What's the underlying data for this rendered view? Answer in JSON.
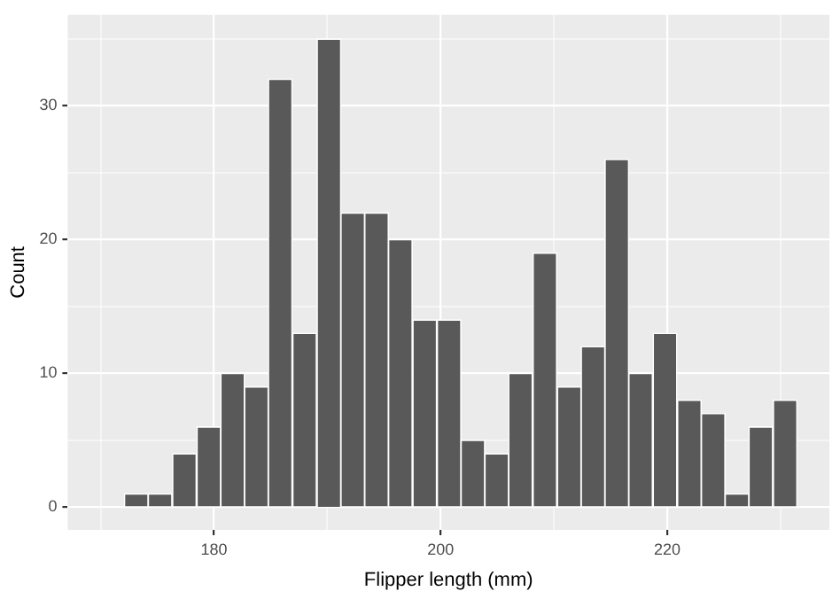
{
  "chart_data": {
    "type": "histogram",
    "xlabel": "Flipper length (mm)",
    "ylabel": "Count",
    "color": "#595959",
    "bins": [
      172.1,
      174.2,
      176.3,
      178.5,
      180.6,
      182.7,
      184.8,
      186.9,
      189.1,
      191.2,
      193.3,
      195.4,
      197.5,
      199.7,
      201.8,
      203.9,
      206.0,
      208.1,
      210.3,
      212.4,
      214.5,
      216.6,
      218.7,
      220.9,
      223.0,
      225.1,
      227.2,
      229.3,
      231.5
    ],
    "values": [
      1,
      1,
      4,
      6,
      10,
      9,
      32,
      13,
      35,
      22,
      22,
      20,
      14,
      14,
      5,
      4,
      10,
      19,
      9,
      12,
      26,
      10,
      13,
      8,
      7,
      1,
      6,
      8
    ],
    "xlim": [
      167.1,
      234.3
    ],
    "ylim": [
      -1.7,
      36.8
    ],
    "xticks": [
      {
        "value": 170,
        "label": null
      },
      180,
      {
        "value": 190,
        "label": null
      },
      200,
      {
        "value": 210,
        "label": null
      },
      220,
      {
        "value": 230,
        "label": null
      }
    ],
    "yticks": [
      0,
      {
        "value": 5,
        "label": null
      },
      10,
      {
        "value": 15,
        "label": null
      },
      20,
      {
        "value": 25,
        "label": null
      },
      30,
      {
        "value": 35,
        "label": null
      }
    ],
    "grid": true
  }
}
